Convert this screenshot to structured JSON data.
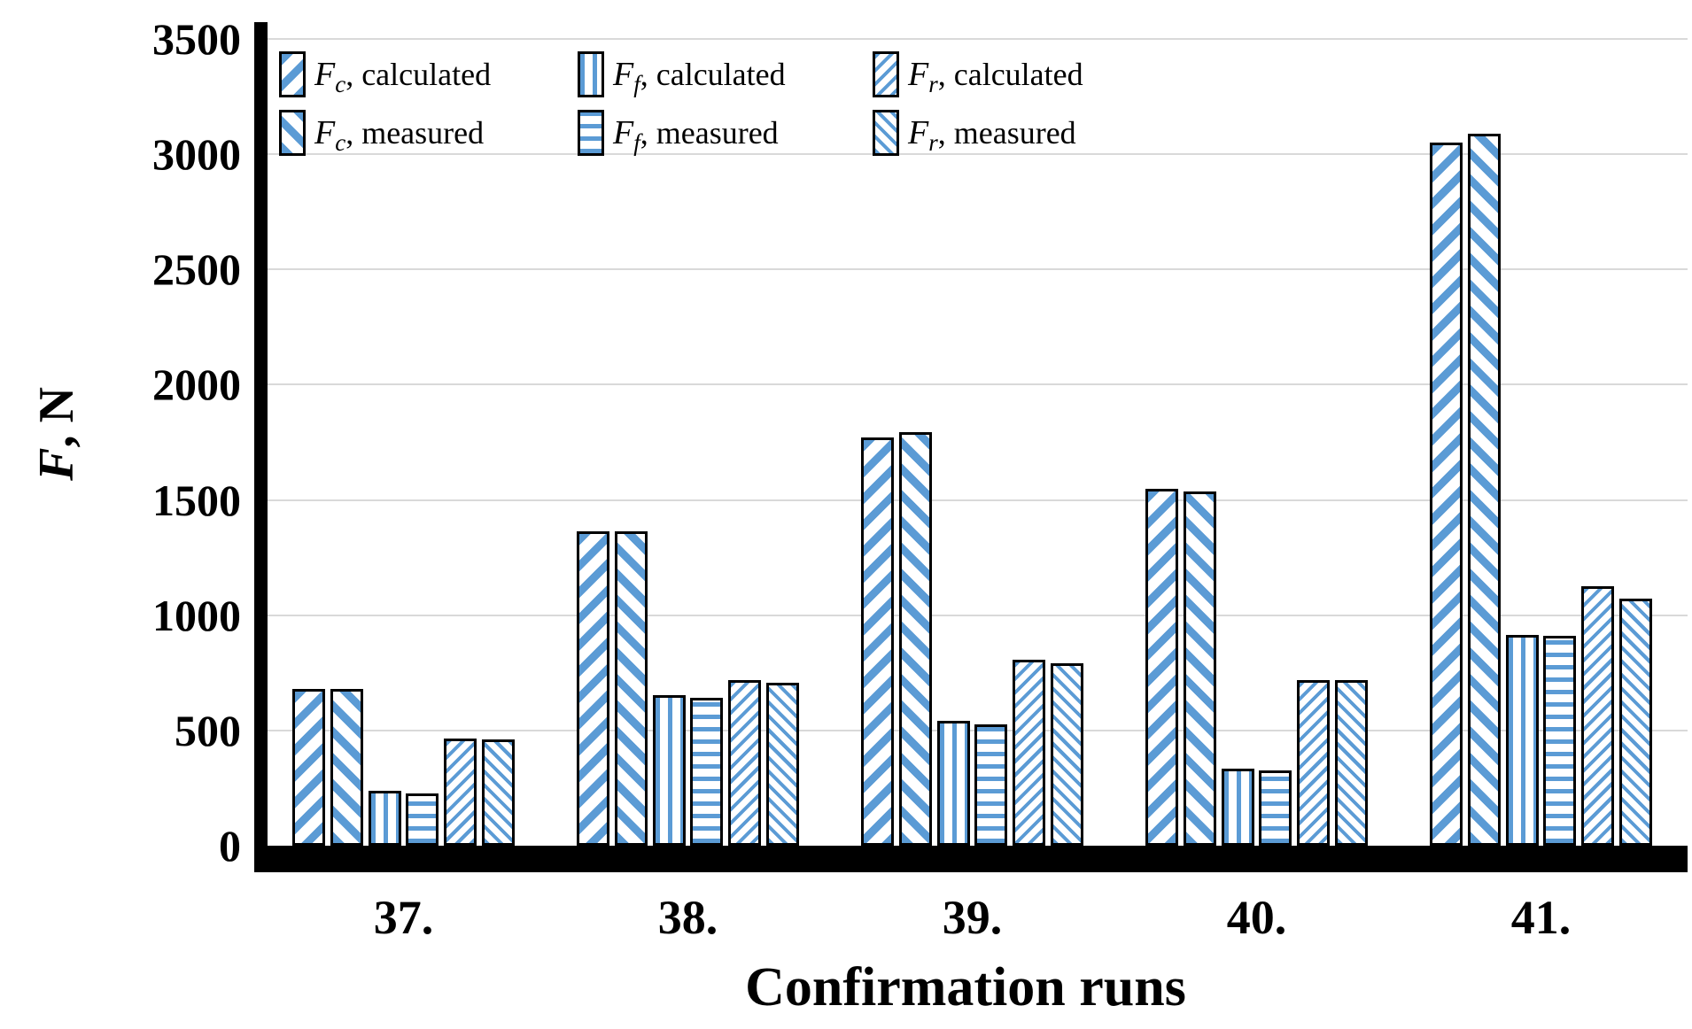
{
  "chart_data": {
    "type": "bar",
    "title": "",
    "xlabel": "Confirmation runs",
    "ylabel": "F, N",
    "ylabel_f": "F",
    "ylabel_rest": ", N",
    "ylim": [
      0,
      3500
    ],
    "ytick_step": 500,
    "yticks": [
      3500,
      3000,
      2500,
      2000,
      1500,
      1000,
      500,
      0
    ],
    "grid": true,
    "legend_position": "top-inside",
    "categories": [
      "37.",
      "38.",
      "39.",
      "40.",
      "41."
    ],
    "series": [
      {
        "name": "Fc, calculated",
        "f": "F",
        "sub": "c",
        "suffix": ", calculated",
        "pattern": "fc-calc",
        "pattern_desc": "wide-diagonal-up-stripes",
        "values": [
          680,
          1365,
          1770,
          1550,
          3050
        ]
      },
      {
        "name": "Fc, measured",
        "f": "F",
        "sub": "c",
        "suffix": ", measured",
        "pattern": "fc-meas",
        "pattern_desc": "wide-diagonal-down-stripes",
        "values": [
          680,
          1365,
          1795,
          1535,
          3090
        ]
      },
      {
        "name": "Ff, calculated",
        "f": "F",
        "sub": "f",
        "suffix": ", calculated",
        "pattern": "ff-calc",
        "pattern_desc": "vertical-stripes",
        "values": [
          240,
          655,
          540,
          335,
          915
        ]
      },
      {
        "name": "Ff, measured",
        "f": "F",
        "sub": "f",
        "suffix": ", measured",
        "pattern": "ff-meas",
        "pattern_desc": "horizontal-stripes",
        "values": [
          225,
          640,
          525,
          325,
          910
        ]
      },
      {
        "name": "Fr, calculated",
        "f": "F",
        "sub": "r",
        "suffix": ", calculated",
        "pattern": "fr-calc",
        "pattern_desc": "thin-diagonal-up-stripes",
        "values": [
          465,
          720,
          805,
          720,
          1125
        ]
      },
      {
        "name": "Fr, measured",
        "f": "F",
        "sub": "r",
        "suffix": ", measured",
        "pattern": "fr-meas",
        "pattern_desc": "thin-diagonal-down-stripes",
        "values": [
          460,
          705,
          790,
          720,
          1070
        ]
      }
    ]
  },
  "colors": {
    "stripe": "#5B9BD5",
    "border": "#000000",
    "gridline": "#D9D9D9",
    "axis": "#000000",
    "text": "#000000",
    "background": "#FFFFFF"
  }
}
